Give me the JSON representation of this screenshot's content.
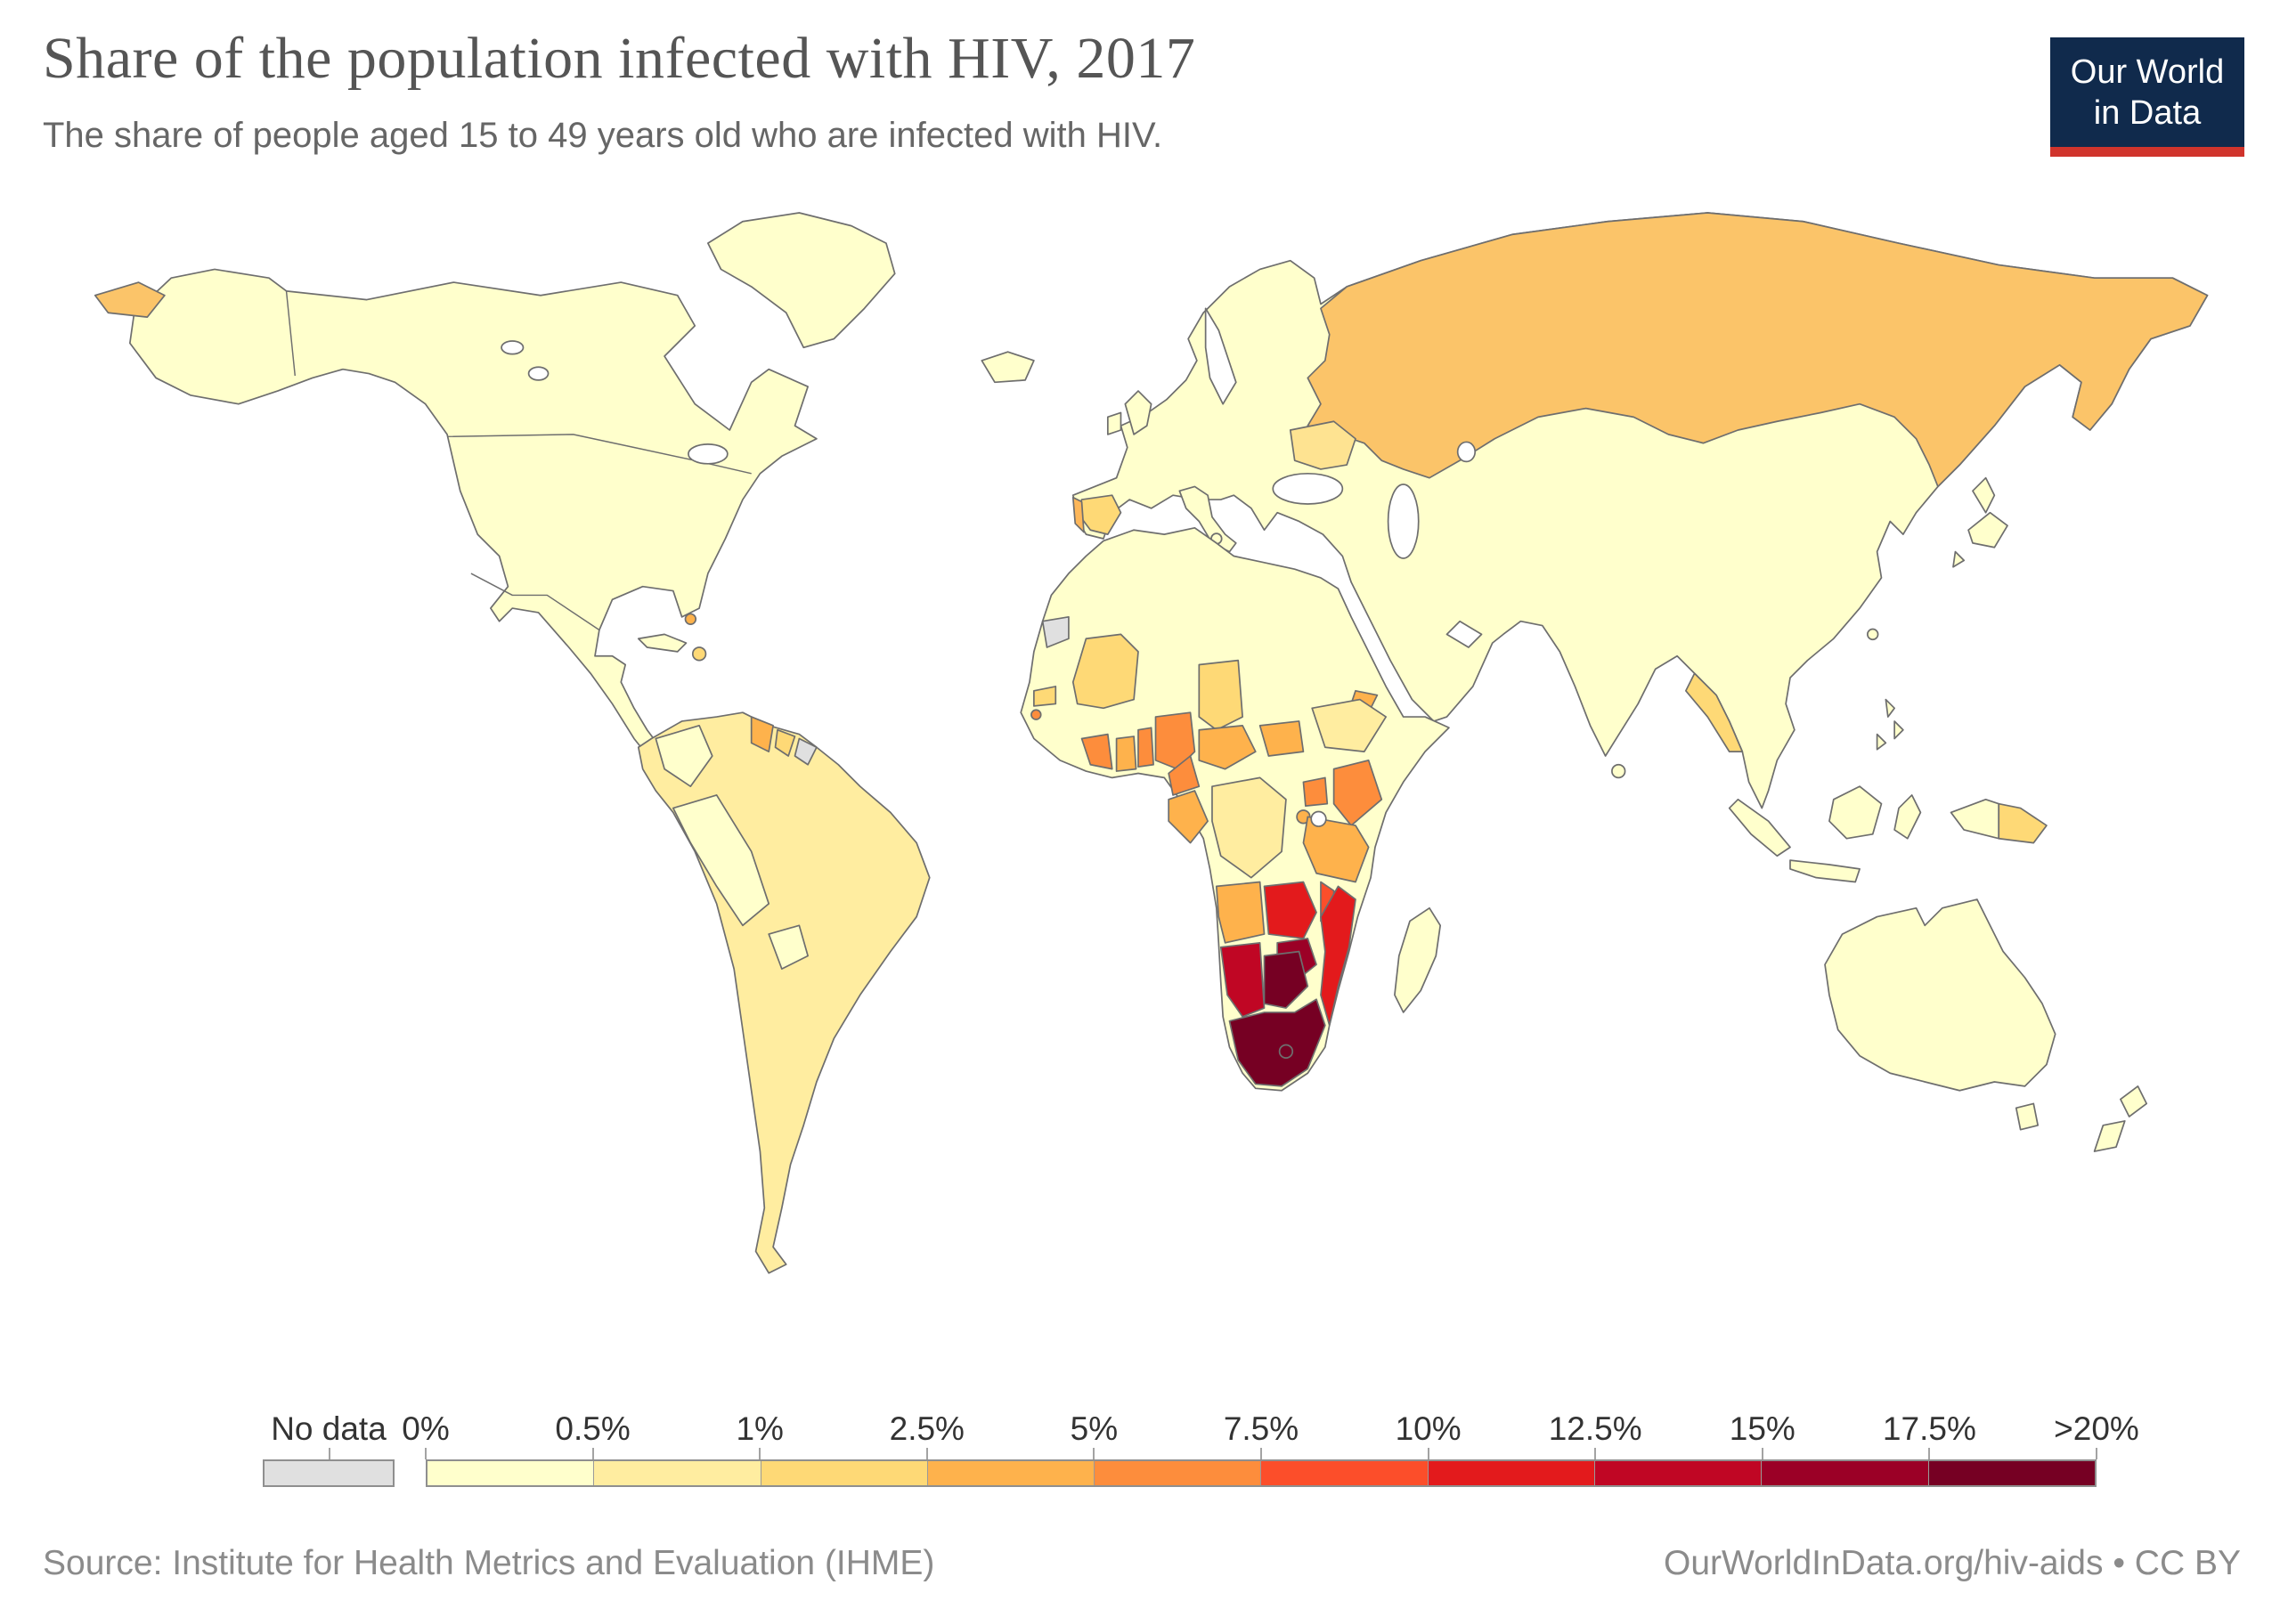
{
  "header": {
    "title": "Share of the population infected with HIV, 2017",
    "subtitle": "The share of people aged 15 to 49 years old who are infected with HIV."
  },
  "logo": {
    "line1": "Our World",
    "line2": "in Data",
    "bg": "#102a4c",
    "accent": "#d0342c"
  },
  "legend": {
    "no_data_label": "No data",
    "no_data_color": "#e0e0e0",
    "labels": [
      "0%",
      "0.5%",
      "1%",
      "2.5%",
      "5%",
      "7.5%",
      "10%",
      "12.5%",
      "15%",
      "17.5%",
      ">20%"
    ],
    "colors": [
      "#ffffcc",
      "#ffeda0",
      "#fed976",
      "#feb24c",
      "#fd8d3c",
      "#fc4e2a",
      "#e31a1c",
      "#c00624",
      "#9b0026",
      "#760023"
    ]
  },
  "footer": {
    "source": "Source: Institute for Health Metrics and Evaluation (IHME)",
    "link": "OurWorldInData.org/hiv-aids • CC BY"
  },
  "chart_data": {
    "type": "choropleth",
    "title": "Share of the population infected with HIV, 2017",
    "unit": "%",
    "legend_position": "bottom",
    "bins": [
      {
        "range": "0–0.5%",
        "color": "#ffffcc"
      },
      {
        "range": "0.5–1%",
        "color": "#ffeda0"
      },
      {
        "range": "1–2.5%",
        "color": "#fed976"
      },
      {
        "range": "2.5–5%",
        "color": "#feb24c"
      },
      {
        "range": "5–7.5%",
        "color": "#fd8d3c"
      },
      {
        "range": "7.5–10%",
        "color": "#fc4e2a"
      },
      {
        "range": "10–12.5%",
        "color": "#e31a1c"
      },
      {
        "range": "12.5–15%",
        "color": "#c00624"
      },
      {
        "range": "15–17.5%",
        "color": "#9b0026"
      },
      {
        "range": "17.5–>20%",
        "color": "#760023"
      },
      {
        "range": "No data",
        "color": "#e0e0e0"
      }
    ],
    "region_bins": {
      "north_america": "0–0.5%",
      "greenland": "0–0.5%",
      "south_america": "0.5–1%",
      "colombia_peru_bolivia_paraguay": "0–0.5%",
      "guyana": "2.5–5%",
      "suriname": "1–2.5%",
      "french_guiana": "No data",
      "hispaniola": "1–2.5%",
      "bahamas": "2.5–5%",
      "europe": "0–0.5%",
      "spain": "1–2.5%",
      "portugal": "2.5–5%",
      "ukraine": "1–2.5%",
      "russia": "1–2.5%",
      "central_asia": "0–0.5%",
      "china_india": "0–0.5%",
      "myanmar_thailand": "1–2.5%",
      "papua_new_guinea": "1–2.5%",
      "australia": "0–0.5%",
      "western_sahara": "No data",
      "mali": "1–2.5%",
      "chad": "1–2.5%",
      "senegal": "1–2.5%",
      "guinea_bissau": "5–7.5%",
      "cote_divoire": "5–7.5%",
      "ghana": "2.5–5%",
      "togo_benin": "5–7.5%",
      "nigeria": "5–7.5%",
      "cameroon": "5–7.5%",
      "central_african_republic": "2.5–5%",
      "south_sudan": "2.5–5%",
      "eritrea": "2.5–5%",
      "ethiopia": "0.5–1%",
      "gabon_congo": "2.5–5%",
      "dr_congo": "0.5–1%",
      "uganda": "5–7.5%",
      "kenya": "5–7.5%",
      "rwanda_burundi": "2.5–5%",
      "tanzania": "2.5–5%",
      "angola": "2.5–5%",
      "zambia": "10–12.5%",
      "malawi": "7.5–10%",
      "mozambique": "10–12.5%",
      "zimbabwe": "15–17.5%",
      "namibia": "12.5–15%",
      "botswana": "17.5–>20%",
      "south_africa": "17.5–>20%",
      "madagascar": "0–0.5%"
    }
  },
  "map": {
    "stroke": "#6e6e6e",
    "regions": {
      "north_america": "#ffffcc",
      "greenland": "#ffffcc",
      "iceland": "#ffffcc",
      "south_america_base": "#ffeda0",
      "colombia_ecuador": "#ffffcc",
      "peru_bolivia": "#ffffcc",
      "paraguay": "#ffffcc",
      "guyana": "#feb24c",
      "suriname": "#fed976",
      "french_guiana": "#e0e0e0",
      "cuba": "#ffffcc",
      "hispaniola": "#fed976",
      "bahamas": "#feb24c",
      "eurasia_base": "#ffffcc",
      "russia": "#fbc469",
      "chukotka_fragment": "#fbc469",
      "ukraine": "#fee391",
      "spain": "#fed976",
      "portugal": "#fdb75a",
      "myanmar_thailand": "#fed976",
      "italy": "#ffffcc",
      "uk": "#ffffcc",
      "ireland": "#ffffcc",
      "japan": "#ffffcc",
      "indonesia": "#ffffcc",
      "papua_new_guinea": "#fed976",
      "philippines": "#ffffcc",
      "sri_lanka": "#ffffcc",
      "taiwan": "#ffffcc",
      "australia": "#ffffcc",
      "new_zealand": "#ffffcc",
      "africa_base": "#ffffcc",
      "western_sahara": "#e0e0e0",
      "senegal": "#fed976",
      "guinea_bissau": "#fd8d3c",
      "mali": "#fed976",
      "cote_divoire": "#fd8d3c",
      "ghana": "#feb24c",
      "togo_benin": "#fd8d3c",
      "nigeria": "#fd8d3c",
      "chad": "#fed976",
      "cameroon": "#fd8d3c",
      "central_african_republic": "#feb24c",
      "south_sudan": "#feb24c",
      "eritrea": "#feb24c",
      "ethiopia": "#ffeda0",
      "gabon_congo": "#feb24c",
      "dr_congo": "#ffeda0",
      "uganda": "#fd8d3c",
      "kenya": "#fd8d3c",
      "rwanda_burundi": "#feb24c",
      "tanzania": "#feb24c",
      "angola": "#feb24c",
      "zambia": "#e31a1c",
      "malawi": "#fc4e2a",
      "mozambique": "#e31a1c",
      "zimbabwe": "#9b0026",
      "namibia": "#c00624",
      "botswana": "#760023",
      "south_africa": "#760023",
      "madagascar": "#ffffcc",
      "water": "#ffffff"
    }
  }
}
